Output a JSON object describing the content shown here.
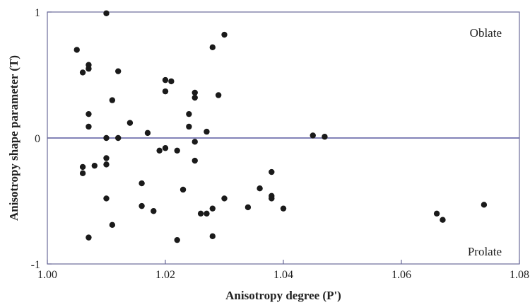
{
  "chart_data": {
    "type": "scatter",
    "title": "",
    "xlabel": "Anisotropy degree (P')",
    "ylabel": "Anisotropy shape parameter (T)",
    "xlim": [
      1.0,
      1.08
    ],
    "ylim": [
      -1,
      1
    ],
    "x_ticks": [
      1.0,
      1.02,
      1.04,
      1.06,
      1.08
    ],
    "x_tick_labels": [
      "1.00",
      "1.02",
      "1.04",
      "1.06",
      "1.08"
    ],
    "y_ticks": [
      -1,
      0,
      1
    ],
    "y_tick_labels": [
      "-1",
      "0",
      "1"
    ],
    "reference_line_y": 0,
    "grid": false,
    "legend": "none",
    "annotations": {
      "top": "Oblate",
      "bottom": "Prolate"
    },
    "colors": {
      "points": "#1a1a1a",
      "zero_line": "#5a5aa0",
      "frame": "#6a6a9a"
    },
    "points": [
      {
        "x": 1.005,
        "y": 0.7
      },
      {
        "x": 1.006,
        "y": 0.52
      },
      {
        "x": 1.007,
        "y": 0.58
      },
      {
        "x": 1.007,
        "y": 0.55
      },
      {
        "x": 1.01,
        "y": 0.99
      },
      {
        "x": 1.012,
        "y": 0.53
      },
      {
        "x": 1.011,
        "y": 0.3
      },
      {
        "x": 1.007,
        "y": 0.19
      },
      {
        "x": 1.007,
        "y": 0.09
      },
      {
        "x": 1.01,
        "y": 0.0
      },
      {
        "x": 1.012,
        "y": 0.0
      },
      {
        "x": 1.014,
        "y": 0.12
      },
      {
        "x": 1.006,
        "y": -0.23
      },
      {
        "x": 1.006,
        "y": -0.28
      },
      {
        "x": 1.008,
        "y": -0.22
      },
      {
        "x": 1.01,
        "y": -0.16
      },
      {
        "x": 1.01,
        "y": -0.21
      },
      {
        "x": 1.01,
        "y": -0.48
      },
      {
        "x": 1.007,
        "y": -0.79
      },
      {
        "x": 1.011,
        "y": -0.69
      },
      {
        "x": 1.016,
        "y": -0.36
      },
      {
        "x": 1.016,
        "y": -0.54
      },
      {
        "x": 1.018,
        "y": -0.58
      },
      {
        "x": 1.017,
        "y": 0.04
      },
      {
        "x": 1.019,
        "y": -0.1
      },
      {
        "x": 1.02,
        "y": -0.08
      },
      {
        "x": 1.02,
        "y": 0.46
      },
      {
        "x": 1.021,
        "y": 0.45
      },
      {
        "x": 1.02,
        "y": 0.37
      },
      {
        "x": 1.022,
        "y": -0.1
      },
      {
        "x": 1.022,
        "y": -0.81
      },
      {
        "x": 1.023,
        "y": -0.41
      },
      {
        "x": 1.024,
        "y": 0.19
      },
      {
        "x": 1.024,
        "y": 0.09
      },
      {
        "x": 1.025,
        "y": 0.36
      },
      {
        "x": 1.025,
        "y": 0.32
      },
      {
        "x": 1.025,
        "y": -0.03
      },
      {
        "x": 1.025,
        "y": -0.18
      },
      {
        "x": 1.026,
        "y": -0.6
      },
      {
        "x": 1.027,
        "y": -0.6
      },
      {
        "x": 1.027,
        "y": 0.05
      },
      {
        "x": 1.028,
        "y": 0.72
      },
      {
        "x": 1.028,
        "y": -0.56
      },
      {
        "x": 1.028,
        "y": -0.78
      },
      {
        "x": 1.029,
        "y": 0.34
      },
      {
        "x": 1.03,
        "y": 0.82
      },
      {
        "x": 1.03,
        "y": -0.48
      },
      {
        "x": 1.034,
        "y": -0.55
      },
      {
        "x": 1.036,
        "y": -0.4
      },
      {
        "x": 1.038,
        "y": -0.27
      },
      {
        "x": 1.038,
        "y": -0.46
      },
      {
        "x": 1.038,
        "y": -0.48
      },
      {
        "x": 1.04,
        "y": -0.56
      },
      {
        "x": 1.045,
        "y": 0.02
      },
      {
        "x": 1.047,
        "y": 0.01
      },
      {
        "x": 1.066,
        "y": -0.6
      },
      {
        "x": 1.067,
        "y": -0.65
      },
      {
        "x": 1.074,
        "y": -0.53
      }
    ]
  }
}
